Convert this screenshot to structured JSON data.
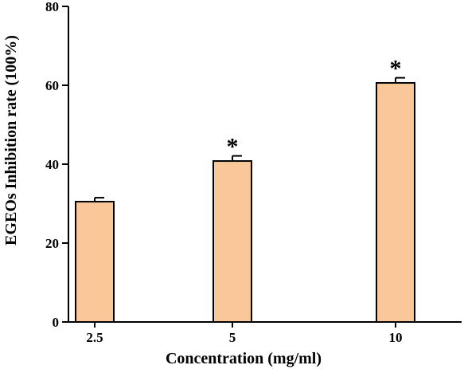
{
  "chart_data": {
    "type": "bar",
    "categories": [
      "2.5",
      "5",
      "10"
    ],
    "values": [
      30.5,
      40.8,
      60.6
    ],
    "errors": [
      1.0,
      1.3,
      1.3
    ],
    "significance": [
      "",
      "*",
      "*"
    ],
    "xlabel": "Concentration (mg/ml)",
    "ylabel": "EGEOs Inhibition rate (100%)",
    "ylim": [
      0,
      80
    ],
    "yticks": [
      "0",
      "20",
      "40",
      "60",
      "80"
    ],
    "grid": false,
    "bar_color": "#FAC898",
    "edge_color": "#000000"
  }
}
